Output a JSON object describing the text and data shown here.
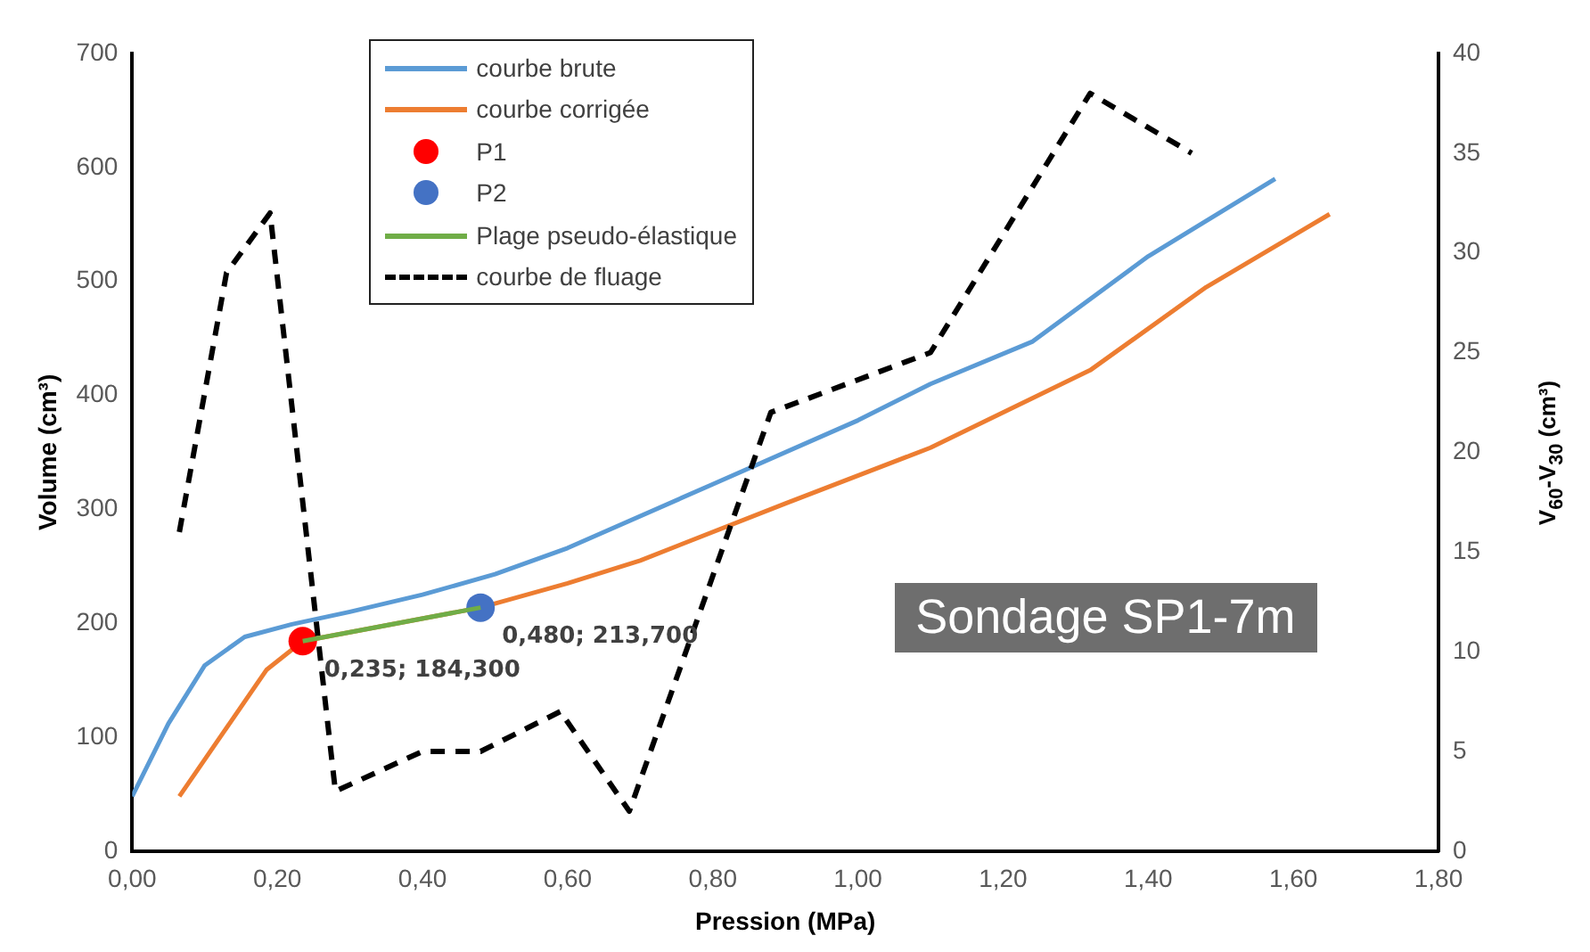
{
  "chart_data": {
    "type": "line",
    "xlabel": "Pression (MPa)",
    "ylabel": "Volume (cm³)",
    "y2label": "V$_{60}$-V$_{30}$ (cm³)",
    "xlim": [
      0,
      1.8
    ],
    "xticks": [
      {
        "value": 0,
        "label": "0,00"
      },
      {
        "value": 0.2,
        "label": "0,20"
      },
      {
        "value": 0.4,
        "label": "0,40"
      },
      {
        "value": 0.6,
        "label": "0,60"
      },
      {
        "value": 0.8,
        "label": "0,80"
      },
      {
        "value": 1,
        "label": "1,00"
      },
      {
        "value": 1.2,
        "label": "1,20"
      },
      {
        "value": 1.4,
        "label": "1,40"
      },
      {
        "value": 1.6,
        "label": "1,60"
      },
      {
        "value": 1.8,
        "label": "1,80"
      }
    ],
    "ylim": [
      0,
      700
    ],
    "yticks": [
      0,
      100,
      200,
      300,
      400,
      500,
      600,
      700
    ],
    "y2lim": [
      0,
      40
    ],
    "y2ticks": [
      0,
      5,
      10,
      15,
      20,
      25,
      30,
      35,
      40
    ],
    "grid": false,
    "legend": "top",
    "series": [
      {
        "name": "courbe brute",
        "color": "#5b9bd5",
        "x": [
          0,
          0.05,
          0.1,
          0.155,
          0.22,
          0.3,
          0.4,
          0.5,
          0.6,
          0.8,
          1,
          1.1,
          1.24,
          1.4,
          1.575
        ],
        "values": [
          48,
          112,
          163,
          188,
          199,
          210,
          225,
          243,
          266,
          322,
          378,
          410,
          447,
          522,
          590
        ]
      },
      {
        "name": "courbe corrigée",
        "color": "#ed7d31",
        "x": [
          0.065,
          0.185,
          0.235,
          0.48,
          0.6,
          0.7,
          0.9,
          1.1,
          1.32,
          1.48,
          1.65
        ],
        "values": [
          48,
          159,
          184.3,
          213.7,
          235,
          255,
          305,
          354,
          422,
          495,
          559
        ]
      },
      {
        "name": "P1",
        "type": "scatter",
        "marker": "circle",
        "color": "#ff0000",
        "x": [
          0.235
        ],
        "values": [
          184.3
        ]
      },
      {
        "name": "P2",
        "type": "scatter",
        "marker": "circle",
        "color": "#4472c4",
        "x": [
          0.48
        ],
        "values": [
          213.7
        ]
      },
      {
        "name": "Plage pseudo-élastique",
        "color": "#70ad47",
        "x": [
          0.235,
          0.48
        ],
        "values": [
          184.3,
          213.7
        ]
      },
      {
        "name": "courbe de fluage",
        "axis": "y2",
        "line_style": "dashed",
        "color": "#000000",
        "x": [
          0.065,
          0.13,
          0.19,
          0.28,
          0.4,
          0.48,
          0.59,
          0.685,
          0.88,
          1.1,
          1.32,
          1.46
        ],
        "values": [
          16,
          29,
          32,
          3,
          5,
          5,
          7,
          2,
          22,
          25,
          38,
          35
        ]
      }
    ],
    "annotations": [
      {
        "text": "0,235; 184,300",
        "x": 0.235,
        "y": 184.3
      },
      {
        "text": "0,480; 213,700",
        "x": 0.48,
        "y": 213.7
      },
      "Sondage SP1-7m"
    ]
  }
}
